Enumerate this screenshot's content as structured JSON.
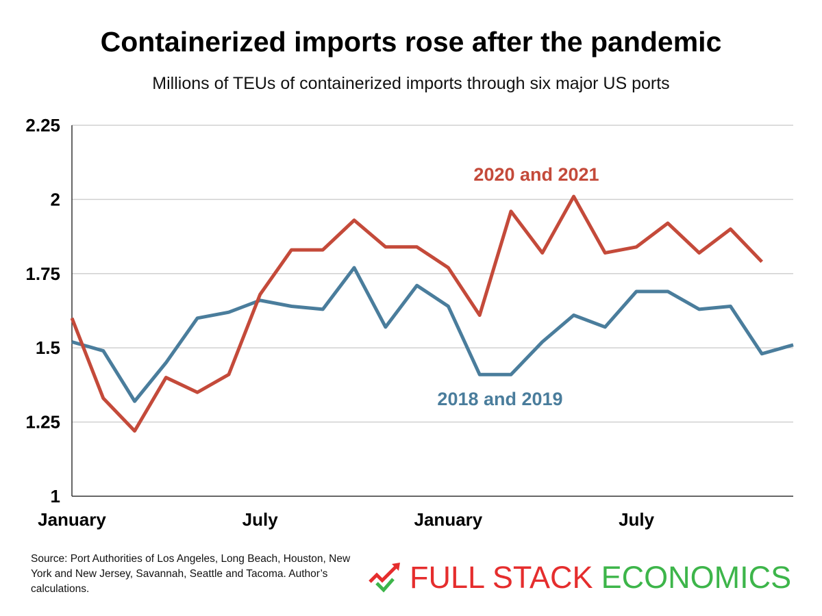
{
  "chart_data": {
    "type": "line",
    "title": "Containerized imports rose after the pandemic",
    "subtitle": "Millions of TEUs of containerized imports through six major US ports",
    "xlabel": "",
    "ylabel": "",
    "ylim": [
      1,
      2.25
    ],
    "yticks": [
      "1",
      "1.25",
      "1.5",
      "1.75",
      "2",
      "2.25"
    ],
    "ytick_values": [
      1,
      1.25,
      1.5,
      1.75,
      2,
      2.25
    ],
    "xticks": [
      {
        "month_index": 0,
        "label": "January"
      },
      {
        "month_index": 6,
        "label": "July"
      },
      {
        "month_index": 12,
        "label": "January"
      },
      {
        "month_index": 18,
        "label": "July"
      }
    ],
    "x_months": 24,
    "grid": "horizontal",
    "series": [
      {
        "name": "2018 and 2019",
        "color": "#4a7d9c",
        "values": [
          1.52,
          1.49,
          1.32,
          1.45,
          1.6,
          1.62,
          1.66,
          1.64,
          1.63,
          1.77,
          1.57,
          1.71,
          1.64,
          1.41,
          1.41,
          1.52,
          1.61,
          1.57,
          1.69,
          1.69,
          1.63,
          1.64,
          1.48,
          1.51
        ]
      },
      {
        "name": "2020 and 2021",
        "color": "#c44a3a",
        "values": [
          1.6,
          1.33,
          1.22,
          1.4,
          1.35,
          1.41,
          1.68,
          1.83,
          1.83,
          1.93,
          1.84,
          1.84,
          1.77,
          1.61,
          1.96,
          1.82,
          2.01,
          1.82,
          1.84,
          1.92,
          1.82,
          1.9,
          1.79
        ]
      }
    ]
  },
  "source": "Source: Port Authorities of Los Angeles, Long Beach, Houston, New York and New Jersey, Savannah, Seattle and Tacoma. Author’s calculations.",
  "logo": {
    "part1": "FULL STACK",
    "part2": "ECONOMICS",
    "icon": "trend-arrow-check-icon",
    "color1": "#e52d2d",
    "color2": "#3db54a"
  }
}
